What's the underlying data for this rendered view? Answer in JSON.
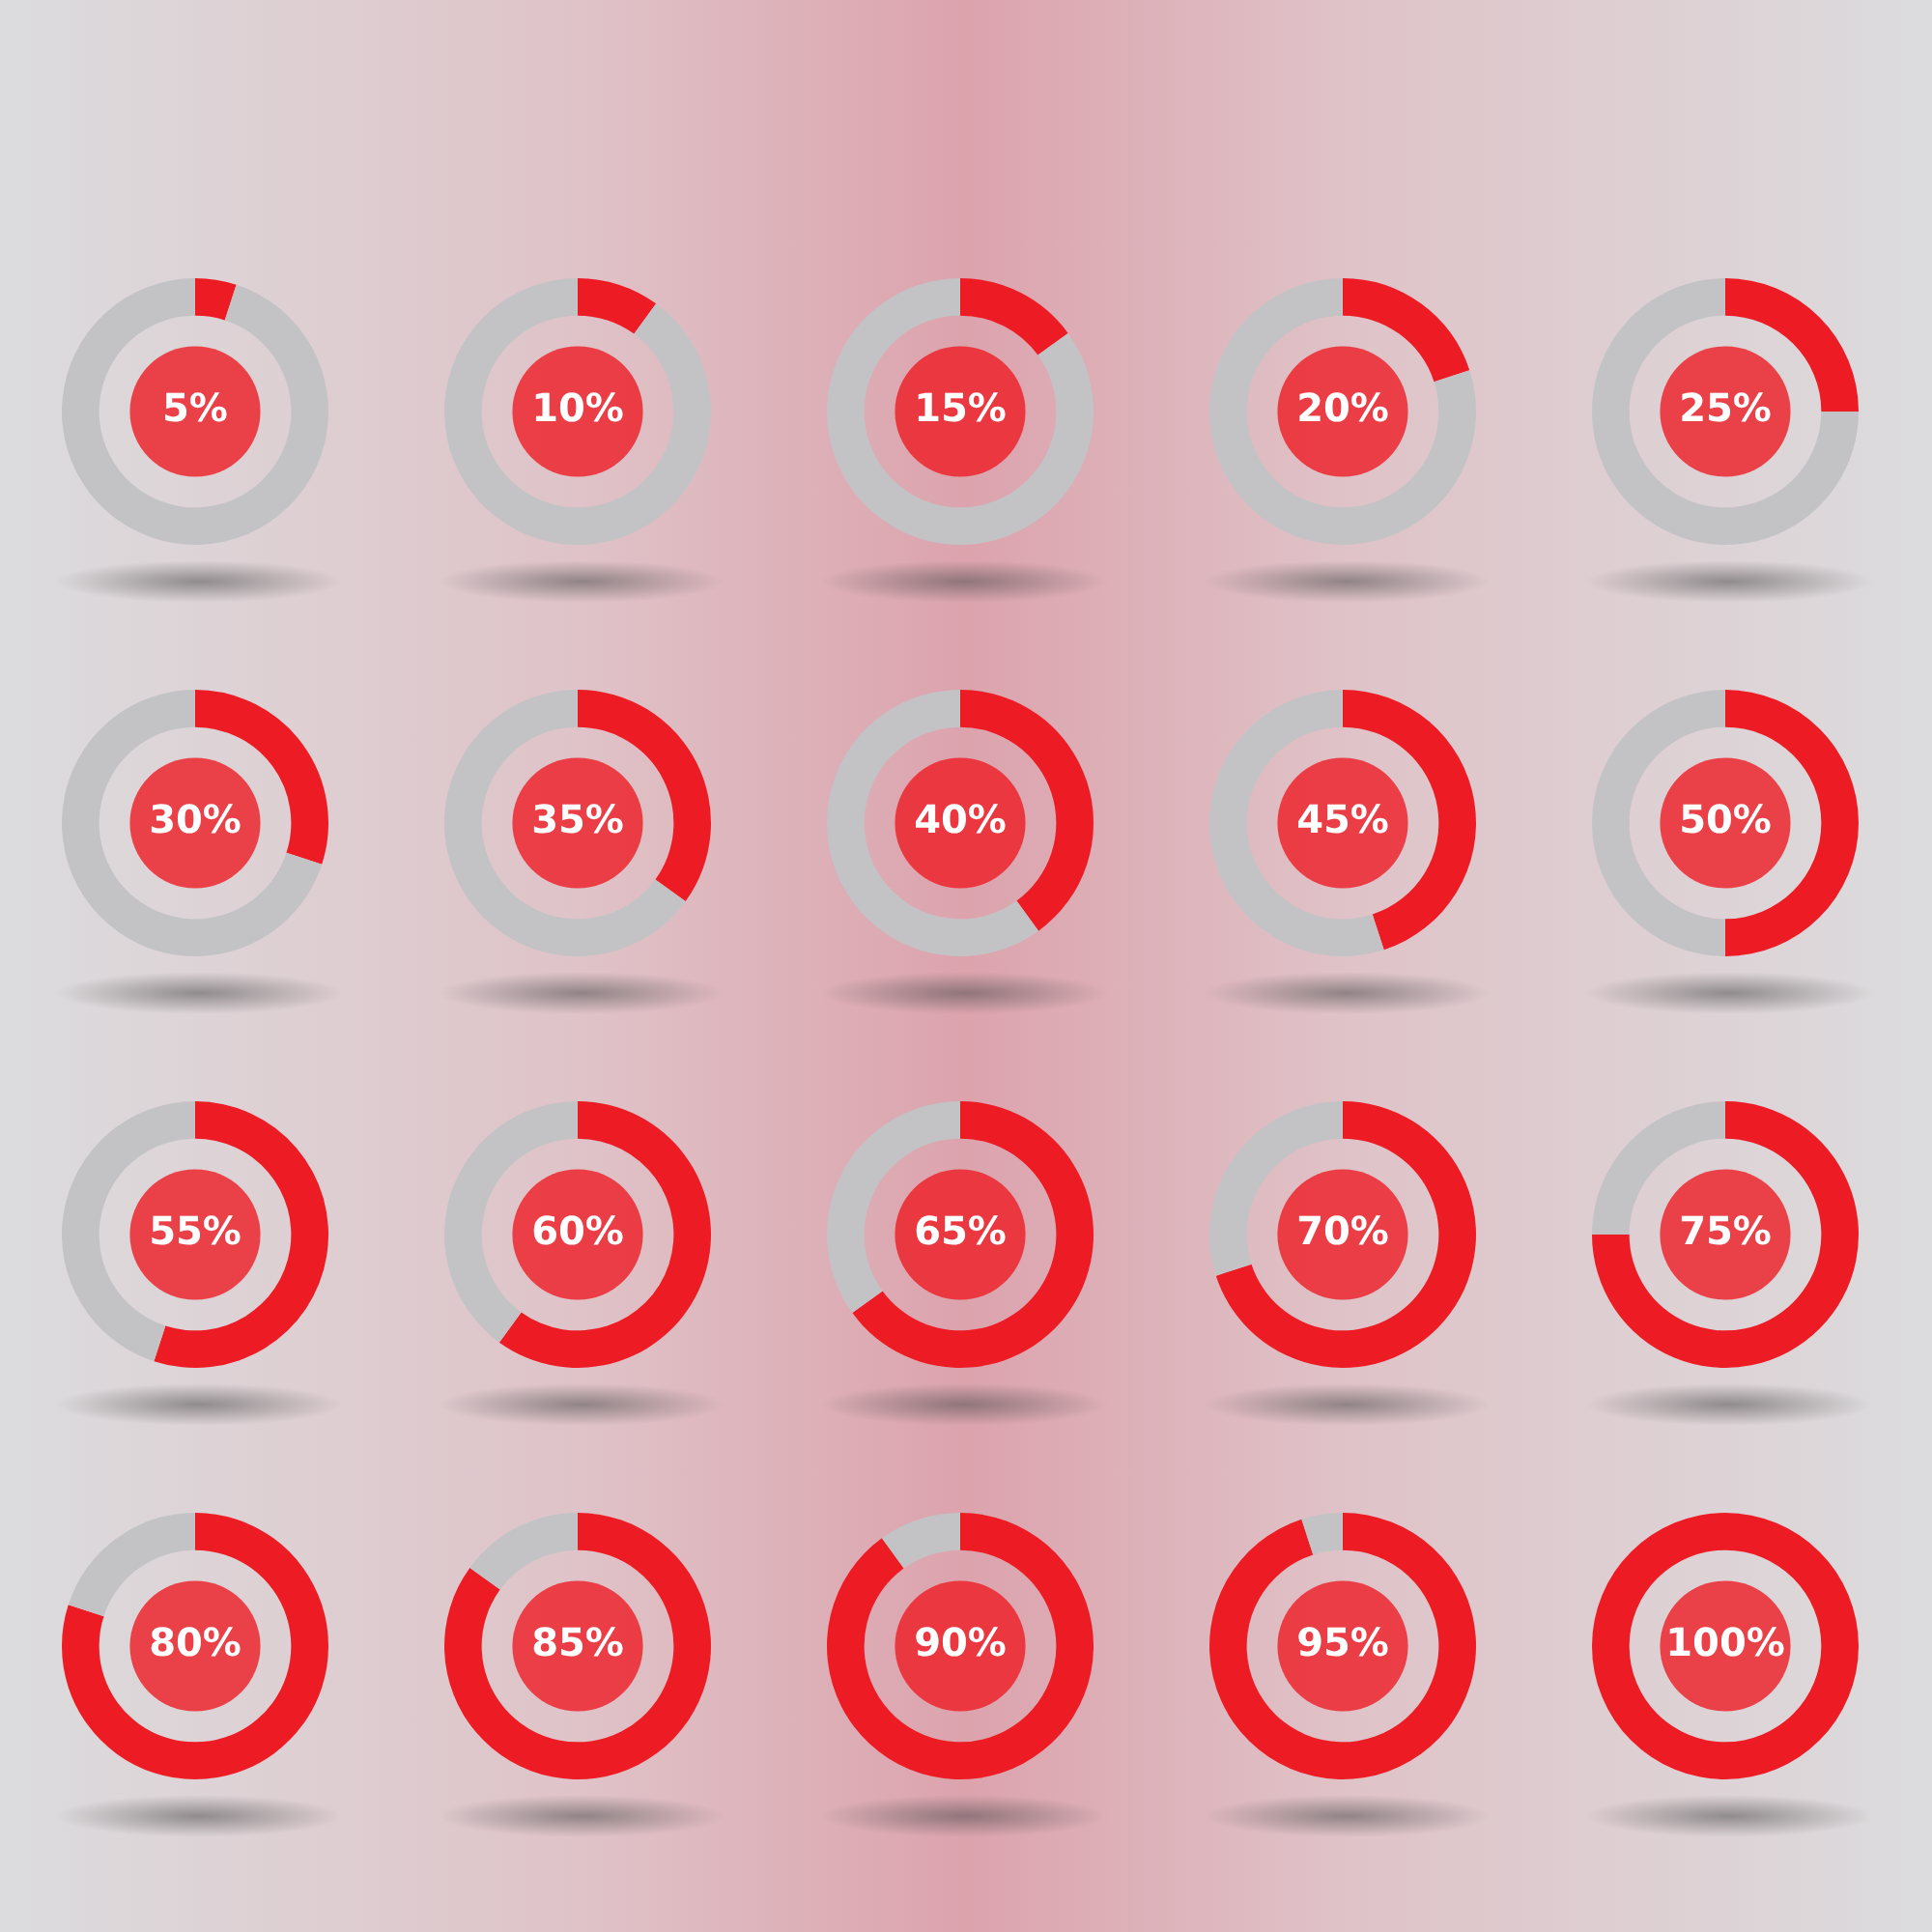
{
  "chart_data": [
    {
      "type": "donut",
      "categories": [
        null,
        null
      ],
      "values": [
        5,
        95
      ],
      "colors": [
        "#ed1c24",
        "#c3c3c5"
      ],
      "annotations": [
        "5%"
      ]
    },
    {
      "type": "donut",
      "categories": [
        null,
        null
      ],
      "values": [
        10,
        90
      ],
      "colors": [
        "#ed1c24",
        "#c3c3c5"
      ],
      "annotations": [
        "10%"
      ]
    },
    {
      "type": "donut",
      "categories": [
        null,
        null
      ],
      "values": [
        15,
        85
      ],
      "colors": [
        "#ed1c24",
        "#c3c3c5"
      ],
      "annotations": [
        "15%"
      ]
    },
    {
      "type": "donut",
      "categories": [
        null,
        null
      ],
      "values": [
        20,
        80
      ],
      "colors": [
        "#ed1c24",
        "#c3c3c5"
      ],
      "annotations": [
        "20%"
      ]
    },
    {
      "type": "donut",
      "categories": [
        null,
        null
      ],
      "values": [
        25,
        75
      ],
      "colors": [
        "#ed1c24",
        "#c3c3c5"
      ],
      "annotations": [
        "25%"
      ]
    },
    {
      "type": "donut",
      "categories": [
        null,
        null
      ],
      "values": [
        30,
        70
      ],
      "colors": [
        "#ed1c24",
        "#c3c3c5"
      ],
      "annotations": [
        "30%"
      ]
    },
    {
      "type": "donut",
      "categories": [
        null,
        null
      ],
      "values": [
        35,
        65
      ],
      "colors": [
        "#ed1c24",
        "#c3c3c5"
      ],
      "annotations": [
        "35%"
      ]
    },
    {
      "type": "donut",
      "categories": [
        null,
        null
      ],
      "values": [
        40,
        60
      ],
      "colors": [
        "#ed1c24",
        "#c3c3c5"
      ],
      "annotations": [
        "40%"
      ]
    },
    {
      "type": "donut",
      "categories": [
        null,
        null
      ],
      "values": [
        45,
        55
      ],
      "colors": [
        "#ed1c24",
        "#c3c3c5"
      ],
      "annotations": [
        "45%"
      ]
    },
    {
      "type": "donut",
      "categories": [
        null,
        null
      ],
      "values": [
        50,
        50
      ],
      "colors": [
        "#ed1c24",
        "#c3c3c5"
      ],
      "annotations": [
        "50%"
      ]
    },
    {
      "type": "donut",
      "categories": [
        null,
        null
      ],
      "values": [
        55,
        45
      ],
      "colors": [
        "#ed1c24",
        "#c3c3c5"
      ],
      "annotations": [
        "55%"
      ]
    },
    {
      "type": "donut",
      "categories": [
        null,
        null
      ],
      "values": [
        60,
        40
      ],
      "colors": [
        "#ed1c24",
        "#c3c3c5"
      ],
      "annotations": [
        "60%"
      ]
    },
    {
      "type": "donut",
      "categories": [
        null,
        null
      ],
      "values": [
        65,
        35
      ],
      "colors": [
        "#ed1c24",
        "#c3c3c5"
      ],
      "annotations": [
        "65%"
      ]
    },
    {
      "type": "donut",
      "categories": [
        null,
        null
      ],
      "values": [
        70,
        30
      ],
      "colors": [
        "#ed1c24",
        "#c3c3c5"
      ],
      "annotations": [
        "70%"
      ]
    },
    {
      "type": "donut",
      "categories": [
        null,
        null
      ],
      "values": [
        75,
        25
      ],
      "colors": [
        "#ed1c24",
        "#c3c3c5"
      ],
      "annotations": [
        "75%"
      ]
    },
    {
      "type": "donut",
      "categories": [
        null,
        null
      ],
      "values": [
        80,
        20
      ],
      "colors": [
        "#ed1c24",
        "#c3c3c5"
      ],
      "annotations": [
        "80%"
      ]
    },
    {
      "type": "donut",
      "categories": [
        null,
        null
      ],
      "values": [
        85,
        15
      ],
      "colors": [
        "#ed1c24",
        "#c3c3c5"
      ],
      "annotations": [
        "85%"
      ]
    },
    {
      "type": "donut",
      "categories": [
        null,
        null
      ],
      "values": [
        90,
        10
      ],
      "colors": [
        "#ed1c24",
        "#c3c3c5"
      ],
      "annotations": [
        "90%"
      ]
    },
    {
      "type": "donut",
      "categories": [
        null,
        null
      ],
      "values": [
        95,
        5
      ],
      "colors": [
        "#ed1c24",
        "#c3c3c5"
      ],
      "annotations": [
        "95%"
      ]
    },
    {
      "type": "donut",
      "categories": [
        null,
        null
      ],
      "values": [
        100,
        0
      ],
      "colors": [
        "#ed1c24",
        "#c3c3c5"
      ],
      "annotations": [
        "100%"
      ]
    }
  ]
}
